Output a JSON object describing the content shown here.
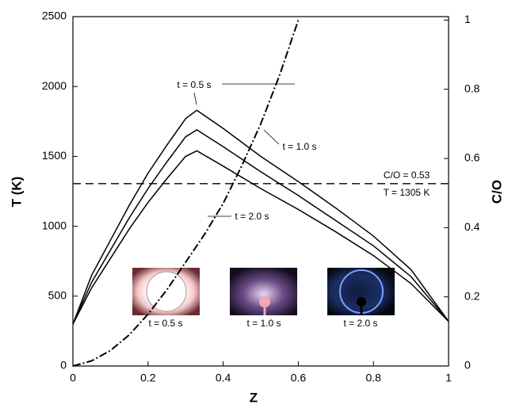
{
  "chart_data": {
    "type": "line",
    "xlabel": "Z",
    "ylabel": "T (K)",
    "y2label": "C/O",
    "x": [
      0,
      0.05,
      0.1,
      0.15,
      0.2,
      0.25,
      0.3,
      0.33,
      0.4,
      0.5,
      0.6,
      0.7,
      0.8,
      0.9,
      1.0
    ],
    "series": [
      {
        "name": "t = 0.5 s",
        "color": "#000000",
        "style": "solid",
        "values": [
          300,
          650,
          900,
          1150,
          1380,
          1580,
          1770,
          1830,
          1700,
          1500,
          1320,
          1130,
          930,
          690,
          320
        ]
      },
      {
        "name": "t = 1.0 s",
        "color": "#000000",
        "style": "solid",
        "values": [
          300,
          600,
          830,
          1060,
          1270,
          1460,
          1640,
          1690,
          1570,
          1390,
          1220,
          1040,
          860,
          640,
          320
        ]
      },
      {
        "name": "t = 2.0 s",
        "color": "#000000",
        "style": "solid",
        "values": [
          300,
          560,
          770,
          980,
          1170,
          1340,
          1500,
          1540,
          1430,
          1270,
          1120,
          960,
          790,
          590,
          320
        ]
      },
      {
        "name": "C/O",
        "color": "#000000",
        "style": "dash-dot",
        "axis": "y2",
        "x": [
          0,
          0.05,
          0.1,
          0.15,
          0.2,
          0.25,
          0.3,
          0.35,
          0.4,
          0.45,
          0.5,
          0.55,
          0.6
        ],
        "values": [
          0,
          0.015,
          0.045,
          0.09,
          0.15,
          0.22,
          0.3,
          0.38,
          0.47,
          0.58,
          0.7,
          0.84,
          1.0
        ]
      }
    ],
    "hline": 1305,
    "annotations": [
      "t = 0.5 s",
      "t = 1.0 s",
      "t = 2.0 s",
      "C/O = 0.53",
      "T = 1305 K"
    ],
    "inset_captions": [
      "t = 0.5 s",
      "t = 1.0 s",
      "t = 2.0 s"
    ],
    "xlim": [
      0,
      1
    ],
    "xticks": [
      0,
      0.2,
      0.4,
      0.6,
      0.8,
      1
    ],
    "ylim": [
      0,
      2500
    ],
    "yticks": [
      0,
      500,
      1000,
      1500,
      2000,
      2500
    ],
    "y2lim": [
      0,
      1.01
    ],
    "y2ticks": [
      0,
      0.2,
      0.4,
      0.6,
      0.8,
      1
    ],
    "grid": false
  }
}
